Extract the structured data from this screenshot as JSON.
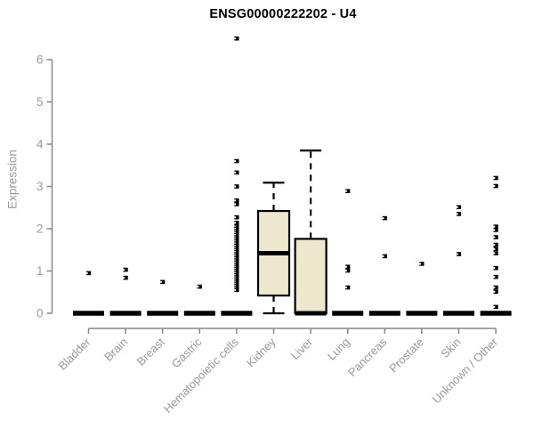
{
  "chart_data": {
    "type": "boxplot",
    "title": "ENSG00000222202 - U4",
    "ylabel": "Expression",
    "xlabel": "",
    "ylim": [
      0,
      6.6
    ],
    "yticks": [
      0,
      1,
      2,
      3,
      4,
      5,
      6
    ],
    "grid": false,
    "legend": "none",
    "categories": [
      "Bladder",
      "Brain",
      "Breast",
      "Gastric",
      "Hematopoietic cells",
      "Kidney",
      "Liver",
      "Lung",
      "Pancreas",
      "Prostate",
      "Skin",
      "Unknown / Other"
    ],
    "boxes": [
      {
        "whisker_low": 0,
        "q1": 0,
        "median": 0,
        "q3": 0,
        "whisker_high": 0
      },
      {
        "whisker_low": 0,
        "q1": 0,
        "median": 0,
        "q3": 0,
        "whisker_high": 0
      },
      {
        "whisker_low": 0,
        "q1": 0,
        "median": 0,
        "q3": 0,
        "whisker_high": 0
      },
      {
        "whisker_low": 0,
        "q1": 0,
        "median": 0,
        "q3": 0,
        "whisker_high": 0
      },
      {
        "whisker_low": 0,
        "q1": 0,
        "median": 0,
        "q3": 0,
        "whisker_high": 0
      },
      {
        "whisker_low": 0,
        "q1": 0.42,
        "median": 1.42,
        "q3": 2.42,
        "whisker_high": 3.09
      },
      {
        "whisker_low": 0,
        "q1": 0,
        "median": 0,
        "q3": 1.76,
        "whisker_high": 3.85
      },
      {
        "whisker_low": 0,
        "q1": 0,
        "median": 0,
        "q3": 0,
        "whisker_high": 0
      },
      {
        "whisker_low": 0,
        "q1": 0,
        "median": 0,
        "q3": 0,
        "whisker_high": 0
      },
      {
        "whisker_low": 0,
        "q1": 0,
        "median": 0,
        "q3": 0,
        "whisker_high": 0
      },
      {
        "whisker_low": 0,
        "q1": 0,
        "median": 0,
        "q3": 0,
        "whisker_high": 0
      },
      {
        "whisker_low": 0,
        "q1": 0,
        "median": 0,
        "q3": 0,
        "whisker_high": 0
      }
    ],
    "outliers": [
      [
        0.95
      ],
      [
        1.03,
        0.84
      ],
      [
        0.74
      ],
      [
        0.63
      ],
      [
        6.5,
        3.6,
        3.33,
        3.0,
        2.67,
        2.58,
        2.27,
        2.14,
        2.05,
        2.0,
        1.95,
        1.9,
        1.85,
        1.8,
        1.75,
        1.7,
        1.65,
        1.6,
        1.55,
        1.5,
        1.45,
        1.4,
        1.35,
        1.3,
        1.25,
        1.2,
        1.15,
        1.1,
        1.05,
        1.0,
        0.95,
        0.9,
        0.85,
        0.8,
        0.75,
        0.7,
        0.65,
        0.6,
        0.55
      ],
      [],
      [],
      [
        2.89,
        1.1,
        1.01,
        0.61
      ],
      [
        2.25,
        1.35
      ],
      [
        1.17
      ],
      [
        2.51,
        2.35,
        1.4
      ],
      [
        3.2,
        3.01,
        2.05,
        1.97,
        1.8,
        1.62,
        1.52,
        1.42,
        1.07,
        0.86,
        0.61,
        0.51,
        0.15
      ]
    ],
    "colors": {
      "background": "#ffffff",
      "box_fill": "#ede8cd",
      "box_border": "#000000",
      "median": "#000000",
      "whisker": "#000000",
      "outlier": "#000000",
      "axis_line": "#888888",
      "tick_label": "#999999",
      "title": "#000000"
    }
  }
}
